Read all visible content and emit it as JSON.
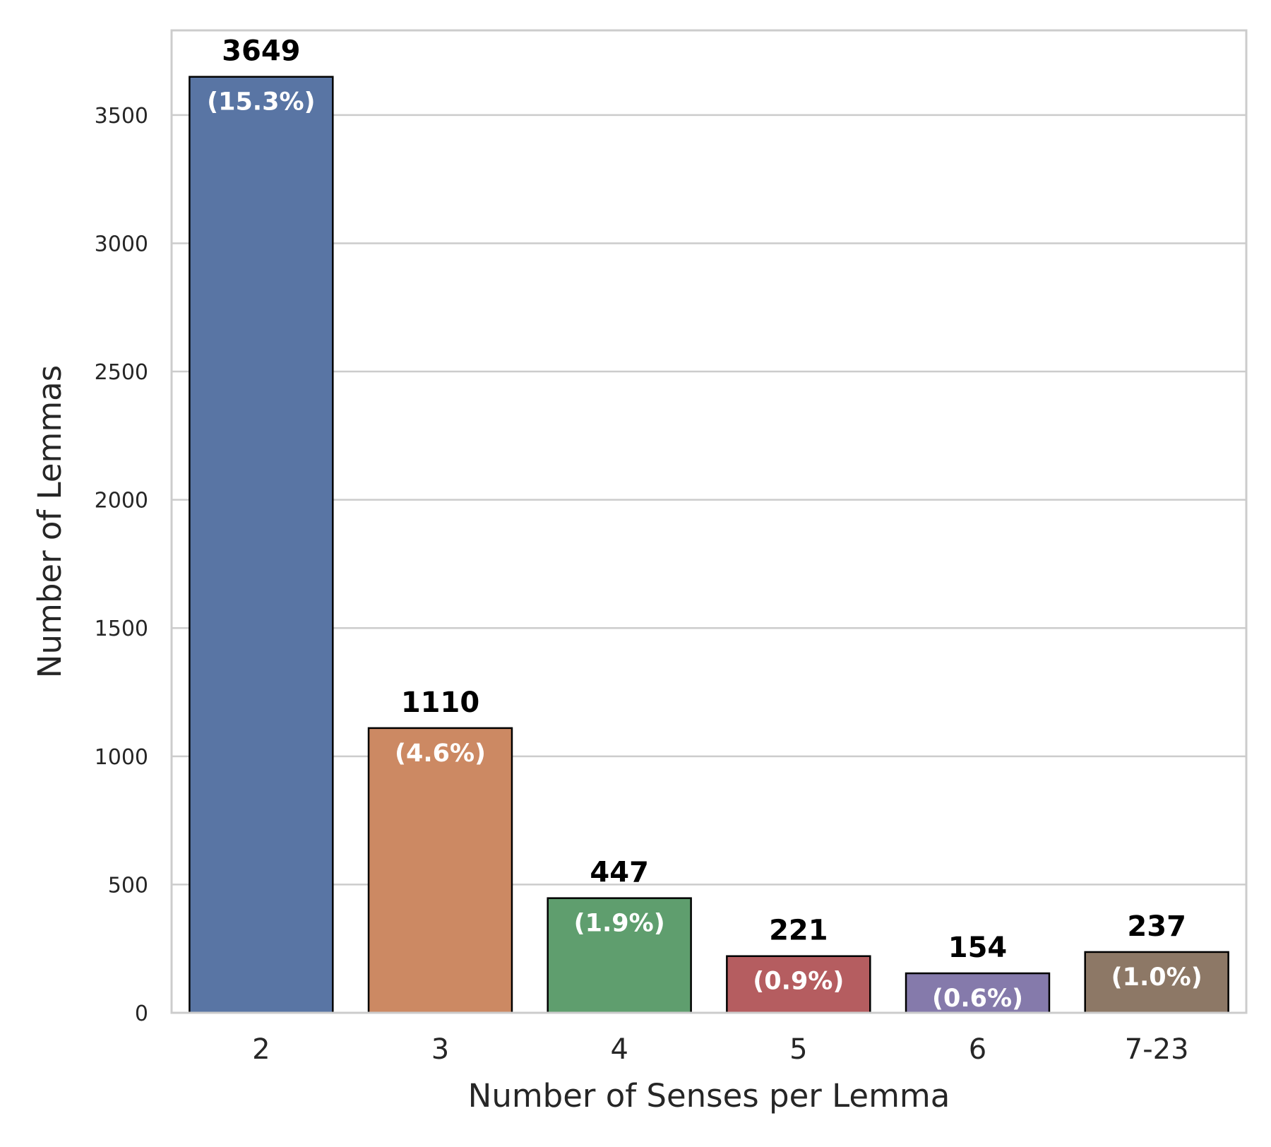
{
  "chart_data": {
    "type": "bar",
    "categories": [
      "2",
      "3",
      "4",
      "5",
      "6",
      "7-23"
    ],
    "values": [
      3649,
      1110,
      447,
      221,
      154,
      237
    ],
    "percent_labels": [
      "(15.3%)",
      "(4.6%)",
      "(1.9%)",
      "(0.9%)",
      "(0.6%)",
      "(1.0%)"
    ],
    "colors": [
      "#5975a4",
      "#cc8963",
      "#5f9e6e",
      "#b55d60",
      "#857aab",
      "#8d7866"
    ],
    "title": "",
    "xlabel": "Number of Senses per Lemma",
    "ylabel": "Number of Lemmas",
    "ylim": [
      0,
      3830
    ],
    "yticks": [
      0,
      500,
      1000,
      1500,
      2000,
      2500,
      3000,
      3500
    ],
    "grid": "horizontal",
    "grid_color": "#cccccc",
    "bar_edge_color": "#000000"
  }
}
